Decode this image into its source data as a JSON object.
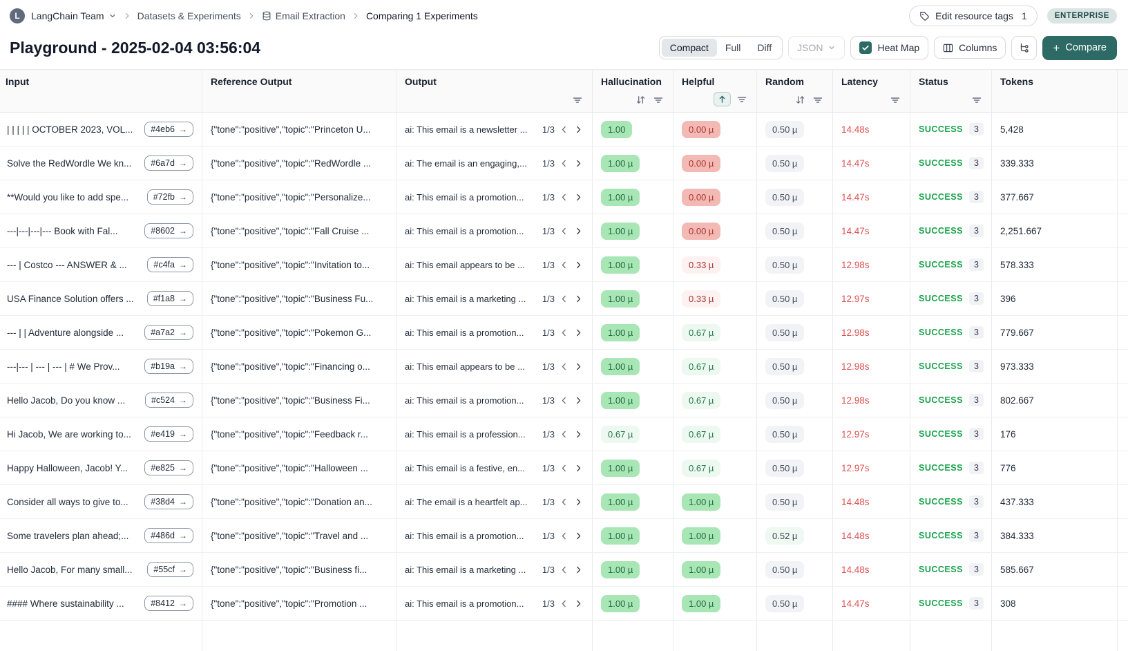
{
  "topbar": {
    "team_initial": "L",
    "team": "LangChain Team",
    "breadcrumb": [
      "Datasets & Experiments",
      "Email Extraction",
      "Comparing 1 Experiments"
    ],
    "edit_tags_label": "Edit resource tags",
    "edit_tags_count": "1",
    "plan_badge": "ENTERPRISE"
  },
  "titlebar": {
    "title": "Playground - 2025-02-04 03:56:04",
    "view_modes": [
      "Compact",
      "Full",
      "Diff"
    ],
    "active_view_mode": "Compact",
    "json_dropdown": "JSON",
    "heatmap_label": "Heat Map",
    "heatmap_checked": true,
    "columns_label": "Columns",
    "compare_label": "Compare"
  },
  "colors": {
    "accent_teal": "#2d6a66",
    "success_green": "#17a34a",
    "latency_red": "#dd5151",
    "heat_green_strong_bg": "#a9e6b6",
    "heat_green_light_bg": "#edf9f0",
    "heat_red_strong_bg": "#f3b9b5",
    "heat_red_light_bg": "#fdf2f1",
    "neutral_badge_bg": "#f2f3f6",
    "enterprise_badge_bg": "#d9e4e3"
  },
  "icons": {
    "team_selector": "chevron-down",
    "breadcrumb_separator": "chevron-right",
    "dataset": "database",
    "edit_tags": "tag",
    "heatmap_checkbox": "check",
    "columns": "columns-layout",
    "tree_view": "tree-branch",
    "compare": "plus",
    "sort_inactive": "arrows-up-down",
    "sort_active": "arrow-up",
    "filter": "filter-lines",
    "pager_prev": "chevron-left",
    "pager_next": "chevron-right",
    "example_link": "arrow-right"
  },
  "table": {
    "columns": [
      {
        "id": "input",
        "label": "Input"
      },
      {
        "id": "reference",
        "label": "Reference Output"
      },
      {
        "id": "output",
        "label": "Output",
        "filter": true
      },
      {
        "id": "hallucination",
        "label": "Hallucination",
        "sort": "both",
        "filter": true
      },
      {
        "id": "helpful",
        "label": "Helpful",
        "sort": "asc",
        "filter": true
      },
      {
        "id": "random",
        "label": "Random",
        "sort": "both",
        "filter": true
      },
      {
        "id": "latency",
        "label": "Latency",
        "filter": true
      },
      {
        "id": "status",
        "label": "Status",
        "filter": true
      },
      {
        "id": "tokens",
        "label": "Tokens"
      },
      {
        "id": "spacer",
        "label": ""
      }
    ],
    "rows": [
      {
        "input": "| | | | | OCTOBER 2023, VOL...",
        "input_id": "#4eb6",
        "reference": "{\"tone\":\"positive\",\"topic\":\"Princeton U...",
        "output": "ai: This email is a newsletter ...",
        "pager": "1/3",
        "hallucination": {
          "text": "1.00",
          "level": "g2"
        },
        "helpful": {
          "text": "0.00 µ",
          "level": "r2"
        },
        "random": {
          "text": "0.50 µ",
          "level": "n"
        },
        "latency": "14.48s",
        "status": "SUCCESS",
        "runs": "3",
        "tokens": "5,428"
      },
      {
        "input": "Solve the RedWordle We kn...",
        "input_id": "#6a7d",
        "reference": "{\"tone\":\"positive\",\"topic\":\"RedWordle ...",
        "output": "ai: The email is an engaging,...",
        "pager": "1/3",
        "hallucination": {
          "text": "1.00 µ",
          "level": "g2"
        },
        "helpful": {
          "text": "0.00 µ",
          "level": "r2"
        },
        "random": {
          "text": "0.50 µ",
          "level": "n"
        },
        "latency": "14.47s",
        "status": "SUCCESS",
        "runs": "3",
        "tokens": "339.333"
      },
      {
        "input": "**Would you like to add spe...",
        "input_id": "#72fb",
        "reference": "{\"tone\":\"positive\",\"topic\":\"Personalize...",
        "output": "ai: This email is a promotion...",
        "pager": "1/3",
        "hallucination": {
          "text": "1.00 µ",
          "level": "g2"
        },
        "helpful": {
          "text": "0.00 µ",
          "level": "r2"
        },
        "random": {
          "text": "0.50 µ",
          "level": "n"
        },
        "latency": "14.47s",
        "status": "SUCCESS",
        "runs": "3",
        "tokens": "377.667"
      },
      {
        "input": "---|---|---|--- Book with Fal...",
        "input_id": "#8602",
        "reference": "{\"tone\":\"positive\",\"topic\":\"Fall Cruise ...",
        "output": "ai: This email is a promotion...",
        "pager": "1/3",
        "hallucination": {
          "text": "1.00 µ",
          "level": "g2"
        },
        "helpful": {
          "text": "0.00 µ",
          "level": "r2"
        },
        "random": {
          "text": "0.50 µ",
          "level": "n"
        },
        "latency": "14.47s",
        "status": "SUCCESS",
        "runs": "3",
        "tokens": "2,251.667"
      },
      {
        "input": "--- | Costco --- ANSWER & ...",
        "input_id": "#c4fa",
        "reference": "{\"tone\":\"positive\",\"topic\":\"Invitation to...",
        "output": "ai: This email appears to be ...",
        "pager": "1/3",
        "hallucination": {
          "text": "1.00 µ",
          "level": "g2"
        },
        "helpful": {
          "text": "0.33 µ",
          "level": "r1"
        },
        "random": {
          "text": "0.50 µ",
          "level": "n"
        },
        "latency": "12.98s",
        "status": "SUCCESS",
        "runs": "3",
        "tokens": "578.333"
      },
      {
        "input": "USA Finance Solution offers ...",
        "input_id": "#f1a8",
        "reference": "{\"tone\":\"positive\",\"topic\":\"Business Fu...",
        "output": "ai: This email is a marketing ...",
        "pager": "1/3",
        "hallucination": {
          "text": "1.00 µ",
          "level": "g2"
        },
        "helpful": {
          "text": "0.33 µ",
          "level": "r1"
        },
        "random": {
          "text": "0.50 µ",
          "level": "n"
        },
        "latency": "12.97s",
        "status": "SUCCESS",
        "runs": "3",
        "tokens": "396"
      },
      {
        "input": "--- | | Adventure alongside ...",
        "input_id": "#a7a2",
        "reference": "{\"tone\":\"positive\",\"topic\":\"Pokemon G...",
        "output": "ai: This email is a promotion...",
        "pager": "1/3",
        "hallucination": {
          "text": "1.00 µ",
          "level": "g2"
        },
        "helpful": {
          "text": "0.67 µ",
          "level": "g1"
        },
        "random": {
          "text": "0.50 µ",
          "level": "n"
        },
        "latency": "12.98s",
        "status": "SUCCESS",
        "runs": "3",
        "tokens": "779.667"
      },
      {
        "input": "---|--- | --- | --- | # We Prov...",
        "input_id": "#b19a",
        "reference": "{\"tone\":\"positive\",\"topic\":\"Financing o...",
        "output": "ai: This email appears to be ...",
        "pager": "1/3",
        "hallucination": {
          "text": "1.00 µ",
          "level": "g2"
        },
        "helpful": {
          "text": "0.67 µ",
          "level": "g1"
        },
        "random": {
          "text": "0.50 µ",
          "level": "n"
        },
        "latency": "12.98s",
        "status": "SUCCESS",
        "runs": "3",
        "tokens": "973.333"
      },
      {
        "input": "Hello Jacob, Do you know ...",
        "input_id": "#c524",
        "reference": "{\"tone\":\"positive\",\"topic\":\"Business Fi...",
        "output": "ai: This email is a promotion...",
        "pager": "1/3",
        "hallucination": {
          "text": "1.00 µ",
          "level": "g2"
        },
        "helpful": {
          "text": "0.67 µ",
          "level": "g1"
        },
        "random": {
          "text": "0.50 µ",
          "level": "n"
        },
        "latency": "12.98s",
        "status": "SUCCESS",
        "runs": "3",
        "tokens": "802.667"
      },
      {
        "input": "Hi Jacob, We are working to...",
        "input_id": "#e419",
        "reference": "{\"tone\":\"positive\",\"topic\":\"Feedback r...",
        "output": "ai: This email is a profession...",
        "pager": "1/3",
        "hallucination": {
          "text": "0.67 µ",
          "level": "g1"
        },
        "helpful": {
          "text": "0.67 µ",
          "level": "g1"
        },
        "random": {
          "text": "0.50 µ",
          "level": "n"
        },
        "latency": "12.97s",
        "status": "SUCCESS",
        "runs": "3",
        "tokens": "176"
      },
      {
        "input": "Happy Halloween, Jacob! Y...",
        "input_id": "#e825",
        "reference": "{\"tone\":\"positive\",\"topic\":\"Halloween ...",
        "output": "ai: This email is a festive, en...",
        "pager": "1/3",
        "hallucination": {
          "text": "1.00 µ",
          "level": "g2"
        },
        "helpful": {
          "text": "0.67 µ",
          "level": "g1"
        },
        "random": {
          "text": "0.50 µ",
          "level": "n"
        },
        "latency": "12.97s",
        "status": "SUCCESS",
        "runs": "3",
        "tokens": "776"
      },
      {
        "input": "Consider all ways to give to...",
        "input_id": "#38d4",
        "reference": "{\"tone\":\"positive\",\"topic\":\"Donation an...",
        "output": "ai: The email is a heartfelt ap...",
        "pager": "1/3",
        "hallucination": {
          "text": "1.00 µ",
          "level": "g2"
        },
        "helpful": {
          "text": "1.00 µ",
          "level": "g2"
        },
        "random": {
          "text": "0.50 µ",
          "level": "n"
        },
        "latency": "14.48s",
        "status": "SUCCESS",
        "runs": "3",
        "tokens": "437.333"
      },
      {
        "input": "Some travelers plan ahead;...",
        "input_id": "#486d",
        "reference": "{\"tone\":\"positive\",\"topic\":\"Travel and ...",
        "output": "ai: This email is a promotion...",
        "pager": "1/3",
        "hallucination": {
          "text": "1.00 µ",
          "level": "g2"
        },
        "helpful": {
          "text": "1.00 µ",
          "level": "g2"
        },
        "random": {
          "text": "0.52 µ",
          "level": "gt"
        },
        "latency": "14.48s",
        "status": "SUCCESS",
        "runs": "3",
        "tokens": "384.333"
      },
      {
        "input": "Hello Jacob, For many small...",
        "input_id": "#55cf",
        "reference": "{\"tone\":\"positive\",\"topic\":\"Business fi...",
        "output": "ai: This email is a marketing ...",
        "pager": "1/3",
        "hallucination": {
          "text": "1.00 µ",
          "level": "g2"
        },
        "helpful": {
          "text": "1.00 µ",
          "level": "g2"
        },
        "random": {
          "text": "0.50 µ",
          "level": "n"
        },
        "latency": "14.48s",
        "status": "SUCCESS",
        "runs": "3",
        "tokens": "585.667"
      },
      {
        "input": "#### Where sustainability ...",
        "input_id": "#8412",
        "reference": "{\"tone\":\"positive\",\"topic\":\"Promotion ...",
        "output": "ai: This email is a promotion...",
        "pager": "1/3",
        "hallucination": {
          "text": "1.00 µ",
          "level": "g2"
        },
        "helpful": {
          "text": "1.00 µ",
          "level": "g2"
        },
        "random": {
          "text": "0.50 µ",
          "level": "n"
        },
        "latency": "14.47s",
        "status": "SUCCESS",
        "runs": "3",
        "tokens": "308"
      }
    ]
  }
}
